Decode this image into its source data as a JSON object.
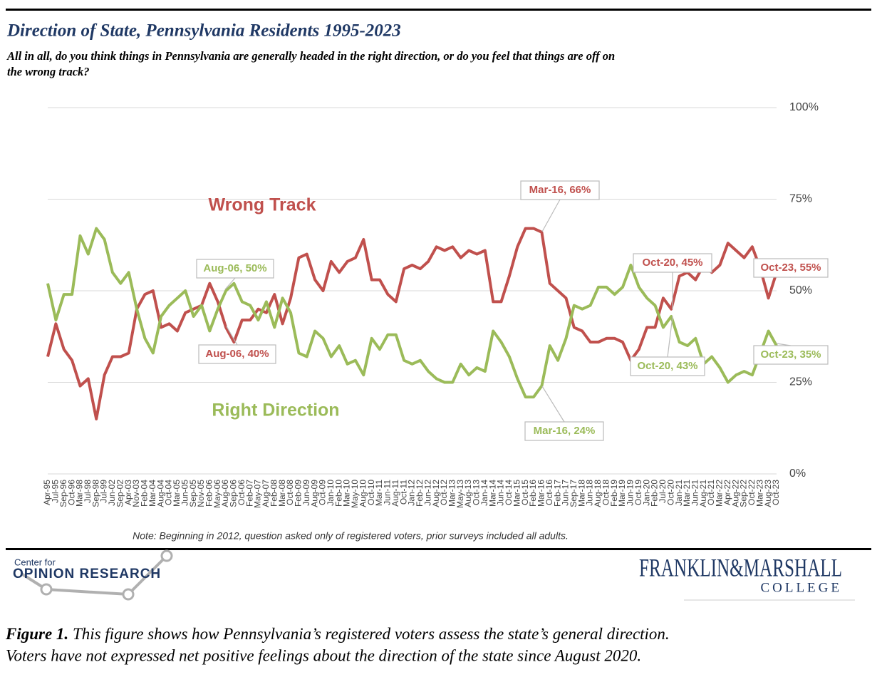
{
  "chart_data": {
    "type": "line",
    "title": "Direction of State, Pennsylvania Residents 1995-2023",
    "subtitle": [
      "All in all, do you think things in Pennsylvania are generally headed in the right direction, or do you feel that things are off on",
      "the wrong track?"
    ],
    "categories": [
      "Apr-95",
      "Jul-95",
      "Sep-96",
      "Oct-96",
      "Mar-98",
      "Jul-98",
      "Sep-98",
      "Jul-99",
      "Jun-02",
      "Sep-02",
      "Apr-03",
      "Nov-03",
      "Feb-04",
      "Mar-04",
      "Aug-04",
      "Oct-04",
      "Mar-05",
      "Jun-05",
      "Sep-05",
      "Nov-05",
      "Feb-06",
      "May-06",
      "Aug-06",
      "Sep-06",
      "Oct-06",
      "Feb-07",
      "May-07",
      "Aug-07",
      "Feb-08",
      "Mar-08",
      "Oct-08",
      "Feb-09",
      "Jun-09",
      "Aug-09",
      "Oct-09",
      "Jan-10",
      "Feb-10",
      "Mar-10",
      "May-10",
      "Aug-10",
      "Oct-10",
      "Mar-11",
      "Jun-11",
      "Aug-11",
      "Oct-11",
      "Jan-12",
      "Feb-12",
      "Jun-12",
      "Aug-12",
      "Oct-12",
      "Mar-13",
      "May-13",
      "Aug-13",
      "Oct-13",
      "Jan-14",
      "Mar-14",
      "Jun-14",
      "Oct-14",
      "Mar-15",
      "Oct-15",
      "Feb-16",
      "Mar-16",
      "Oct-16",
      "Feb-17",
      "Jun-17",
      "Sep-17",
      "Mar-18",
      "Jun-18",
      "Aug-18",
      "Oct-18",
      "Feb-19",
      "Mar-19",
      "Jun-19",
      "Oct-19",
      "Jan-20",
      "Feb-20",
      "Jul-20",
      "Oct-20",
      "Jan-21",
      "Mar-21",
      "Jun-21",
      "Aug-21",
      "Oct-21",
      "Mar-22",
      "Apr-22",
      "Aug-22",
      "Sep-22",
      "Oct-22",
      "Mar-23",
      "Aug-23",
      "Oct-23"
    ],
    "series": [
      {
        "name": "Wrong Track",
        "color": "#c0504d",
        "values": [
          32,
          41,
          34,
          31,
          24,
          26,
          15,
          27,
          32,
          32,
          33,
          45,
          49,
          50,
          40,
          41,
          39,
          44,
          45,
          46,
          52,
          47,
          40,
          36,
          42,
          42,
          45,
          44,
          49,
          41,
          48,
          59,
          60,
          53,
          50,
          58,
          55,
          58,
          59,
          64,
          53,
          53,
          49,
          47,
          56,
          57,
          56,
          58,
          62,
          61,
          62,
          59,
          61,
          60,
          61,
          47,
          47,
          54,
          62,
          67,
          67,
          66,
          52,
          50,
          48,
          40,
          39,
          36,
          36,
          37,
          37,
          36,
          31,
          34,
          40,
          40,
          48,
          45,
          54,
          55,
          53,
          57,
          55,
          57,
          63,
          61,
          59,
          62,
          56,
          48,
          55
        ]
      },
      {
        "name": "Right Direction",
        "color": "#9bbb59",
        "values": [
          52,
          42,
          49,
          49,
          65,
          60,
          67,
          64,
          55,
          52,
          55,
          45,
          37,
          33,
          43,
          46,
          48,
          50,
          43,
          46,
          39,
          45,
          50,
          52,
          47,
          46,
          42,
          47,
          40,
          48,
          44,
          33,
          32,
          39,
          37,
          32,
          35,
          30,
          31,
          27,
          37,
          34,
          38,
          38,
          31,
          30,
          31,
          28,
          26,
          25,
          25,
          30,
          27,
          29,
          28,
          39,
          36,
          32,
          26,
          21,
          21,
          24,
          35,
          31,
          37,
          46,
          45,
          46,
          51,
          51,
          49,
          51,
          57,
          51,
          48,
          46,
          40,
          43,
          36,
          35,
          37,
          30,
          32,
          29,
          25,
          27,
          28,
          27,
          33,
          39,
          35
        ]
      }
    ],
    "ylim": [
      0,
      100
    ],
    "yticks": [
      {
        "value": 0,
        "label": "0%"
      },
      {
        "value": 25,
        "label": "25%"
      },
      {
        "value": 50,
        "label": "50%"
      },
      {
        "value": 75,
        "label": "75%"
      },
      {
        "value": 100,
        "label": "100%"
      }
    ],
    "grid": true,
    "annotations": [
      "Aug-06, 50%",
      "Aug-06, 40%",
      "Mar-16, 66%",
      "Mar-16, 24%",
      "Oct-20, 45%",
      "Oct-20, 43%",
      "Oct-23, 55%",
      "Oct-23, 35%"
    ],
    "note": "Note: Beginning in 2012, question asked only of registered voters, prior surveys included all adults."
  },
  "logos": {
    "center_small": "Center for",
    "center_large": "OPINION RESEARCH",
    "fm": "FRANKLIN&MARSHALL",
    "fm_college": "COLLEGE"
  },
  "caption": {
    "label": "Figure 1.",
    "text": " This figure shows how Pennsylvania’s registered voters assess the state’s general direction.",
    "text2": "Voters have not expressed net positive feelings about the direction of the state since August 2020."
  }
}
